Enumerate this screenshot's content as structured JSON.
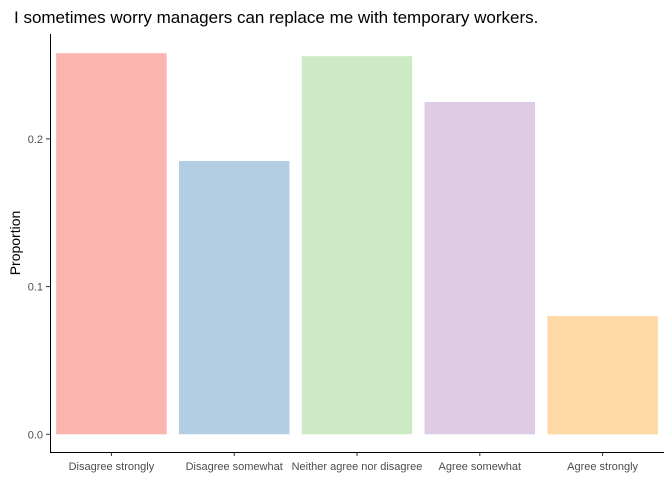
{
  "chart_data": {
    "type": "bar",
    "title": "I sometimes worry managers can replace me with temporary workers.",
    "xlabel": "",
    "ylabel": "Proportion",
    "categories": [
      "Disagree strongly",
      "Disagree somewhat",
      "Neither agree nor disagree",
      "Agree somewhat",
      "Agree strongly"
    ],
    "values": [
      0.258,
      0.185,
      0.256,
      0.225,
      0.08
    ],
    "colors": [
      "#FBB4AE",
      "#B3CDE3",
      "#CCEBC5",
      "#DECBE4",
      "#FED9A6"
    ],
    "yticks": [
      0.0,
      0.1,
      0.2
    ],
    "ytick_labels": [
      "0.0",
      "0.1",
      "0.2"
    ],
    "ylim": [
      -0.012,
      0.271
    ],
    "grid": false,
    "legend": "none"
  }
}
